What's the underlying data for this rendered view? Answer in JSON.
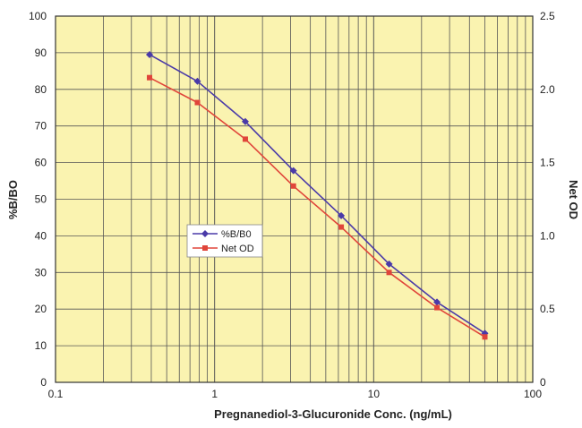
{
  "chart_data": {
    "type": "line",
    "title": "",
    "xlabel": "Pregnanediol-3-Glucuronide Conc. (ng/mL)",
    "ylabel": "%B/BO",
    "y2label": "Net OD",
    "xscale": "log",
    "xlim": [
      0.1,
      100
    ],
    "ylim": [
      0,
      100
    ],
    "y2lim": [
      0,
      2.5
    ],
    "x_ticks": [
      "0.1",
      "1",
      "10",
      "100"
    ],
    "y_ticks": [
      "0",
      "10",
      "20",
      "30",
      "40",
      "50",
      "60",
      "70",
      "80",
      "90",
      "100"
    ],
    "y2_ticks": [
      "0",
      "0.5",
      "1.0",
      "1.5",
      "2.0",
      "2.5"
    ],
    "grid": true,
    "background_color": "#faf3b0",
    "legend_position": "center-left",
    "x": [
      0.39,
      0.78,
      1.56,
      3.13,
      6.25,
      12.5,
      25,
      50
    ],
    "series": [
      {
        "name": "%B/B0",
        "axis": "left",
        "color": "#4a3aa8",
        "marker": "diamond",
        "values": [
          89.5,
          82.2,
          71.2,
          57.8,
          45.5,
          32.3,
          21.9,
          13.4
        ]
      },
      {
        "name": "Net OD",
        "axis": "right",
        "color": "#e0453a",
        "marker": "square",
        "values": [
          2.08,
          1.91,
          1.66,
          1.34,
          1.06,
          0.75,
          0.51,
          0.31
        ]
      }
    ]
  }
}
